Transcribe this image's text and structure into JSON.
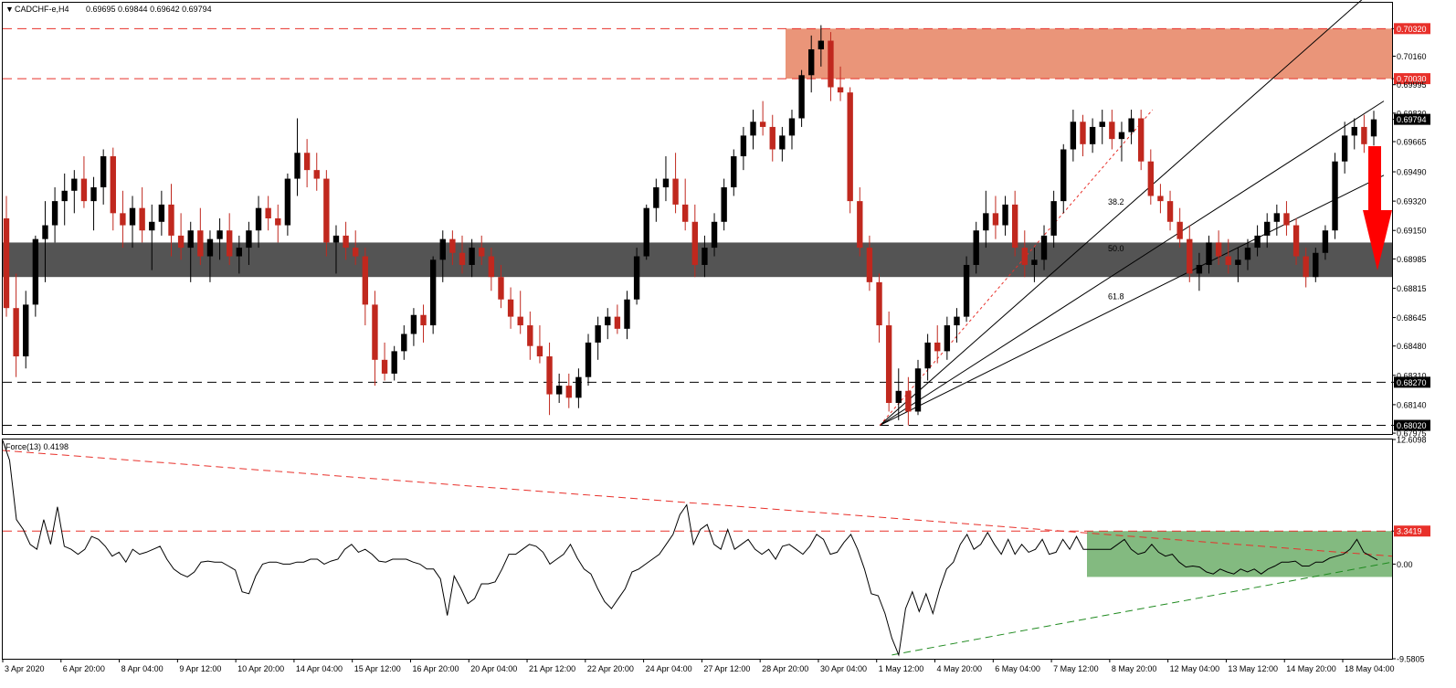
{
  "header": {
    "symbol": "CADCHF-e,H4",
    "ohlc": "0.69695 0.69844 0.69642 0.69794",
    "indicator": "Force(13) 0.4198"
  },
  "colors": {
    "bull_candle": "#000000",
    "bear_candle": "#c0281e",
    "resistance_zone": "#e8896a",
    "support_zone": "#545454",
    "force_zone": "#4e9c4a",
    "red_dash": "#e8302a",
    "green_dash": "#1f8a1f"
  },
  "chart_data": [
    {
      "type": "candlestick",
      "title": "CADCHF-e,H4",
      "ohlc_header": "0.69695 0.69844 0.69642 0.69794",
      "ylim": [
        0.6797,
        0.7047
      ],
      "y_ticks": [
        "0.70320",
        "0.70160",
        "0.70030",
        "0.69995",
        "0.69830",
        "0.69794",
        "0.69665",
        "0.69490",
        "0.69320",
        "0.69150",
        "0.68985",
        "0.68815",
        "0.68645",
        "0.68480",
        "0.68310",
        "0.68270",
        "0.68140",
        "0.68020",
        "0.67975"
      ],
      "highlighted_levels": [
        "0.70320",
        "0.70030",
        "0.69794",
        "0.68270",
        "0.68020"
      ],
      "x_ticks": [
        "3 Apr 2020",
        "6 Apr 20:00",
        "8 Apr 04:00",
        "9 Apr 12:00",
        "10 Apr 20:00",
        "14 Apr 04:00",
        "15 Apr 12:00",
        "16 Apr 20:00",
        "20 Apr 04:00",
        "21 Apr 12:00",
        "22 Apr 20:00",
        "24 Apr 04:00",
        "27 Apr 12:00",
        "28 Apr 20:00",
        "30 Apr 04:00",
        "1 May 12:00",
        "4 May 20:00",
        "6 May 04:00",
        "7 May 12:00",
        "8 May 20:00",
        "12 May 04:00",
        "13 May 12:00",
        "14 May 20:00",
        "18 May 04:00"
      ],
      "candles": [
        [
          0.6922,
          0.6935,
          0.6865,
          0.687
        ],
        [
          0.687,
          0.689,
          0.683,
          0.6842
        ],
        [
          0.6842,
          0.688,
          0.6835,
          0.6872
        ],
        [
          0.6872,
          0.6912,
          0.6865,
          0.691
        ],
        [
          0.691,
          0.6932,
          0.6885,
          0.6918
        ],
        [
          0.6918,
          0.694,
          0.6908,
          0.6932
        ],
        [
          0.6932,
          0.6948,
          0.6918,
          0.6938
        ],
        [
          0.6938,
          0.695,
          0.6925,
          0.6945
        ],
        [
          0.6945,
          0.6958,
          0.6928,
          0.6932
        ],
        [
          0.6932,
          0.6946,
          0.6915,
          0.694
        ],
        [
          0.694,
          0.6962,
          0.693,
          0.6958
        ],
        [
          0.6958,
          0.6963,
          0.6915,
          0.6925
        ],
        [
          0.6925,
          0.6938,
          0.6905,
          0.6918
        ],
        [
          0.6918,
          0.6935,
          0.6905,
          0.6928
        ],
        [
          0.6928,
          0.694,
          0.6908,
          0.6915
        ],
        [
          0.6915,
          0.693,
          0.6892,
          0.692
        ],
        [
          0.692,
          0.6938,
          0.6912,
          0.693
        ],
        [
          0.693,
          0.6942,
          0.69,
          0.6912
        ],
        [
          0.6912,
          0.6925,
          0.6898,
          0.6905
        ],
        [
          0.6905,
          0.692,
          0.6885,
          0.6915
        ],
        [
          0.6915,
          0.6928,
          0.6895,
          0.69
        ],
        [
          0.69,
          0.6915,
          0.6885,
          0.691
        ],
        [
          0.691,
          0.6922,
          0.6898,
          0.6915
        ],
        [
          0.6915,
          0.6925,
          0.6895,
          0.69
        ],
        [
          0.69,
          0.6912,
          0.689,
          0.6905
        ],
        [
          0.6905,
          0.692,
          0.6895,
          0.6915
        ],
        [
          0.6915,
          0.6935,
          0.6905,
          0.6928
        ],
        [
          0.6928,
          0.6935,
          0.6915,
          0.6922
        ],
        [
          0.6922,
          0.693,
          0.6908,
          0.6918
        ],
        [
          0.6918,
          0.6948,
          0.6912,
          0.6945
        ],
        [
          0.6945,
          0.698,
          0.6935,
          0.696
        ],
        [
          0.696,
          0.6968,
          0.694,
          0.695
        ],
        [
          0.695,
          0.696,
          0.6938,
          0.6945
        ],
        [
          0.6945,
          0.695,
          0.69,
          0.6908
        ],
        [
          0.6908,
          0.6918,
          0.689,
          0.6912
        ],
        [
          0.6912,
          0.692,
          0.6898,
          0.6905
        ],
        [
          0.6905,
          0.6915,
          0.6895,
          0.69
        ],
        [
          0.69,
          0.6905,
          0.686,
          0.6872
        ],
        [
          0.6872,
          0.688,
          0.6825,
          0.684
        ],
        [
          0.684,
          0.685,
          0.6828,
          0.6832
        ],
        [
          0.6832,
          0.6848,
          0.6828,
          0.6845
        ],
        [
          0.6845,
          0.686,
          0.684,
          0.6855
        ],
        [
          0.6855,
          0.687,
          0.6848,
          0.6866
        ],
        [
          0.6866,
          0.6872,
          0.685,
          0.686
        ],
        [
          0.686,
          0.69,
          0.6855,
          0.6898
        ],
        [
          0.6898,
          0.6915,
          0.6885,
          0.691
        ],
        [
          0.691,
          0.6915,
          0.6895,
          0.6902
        ],
        [
          0.6902,
          0.6912,
          0.689,
          0.6895
        ],
        [
          0.6895,
          0.691,
          0.6888,
          0.6905
        ],
        [
          0.6905,
          0.6912,
          0.6895,
          0.69
        ],
        [
          0.69,
          0.6905,
          0.688,
          0.6888
        ],
        [
          0.6888,
          0.6895,
          0.687,
          0.6875
        ],
        [
          0.6875,
          0.6882,
          0.6858,
          0.6865
        ],
        [
          0.6865,
          0.688,
          0.6855,
          0.686
        ],
        [
          0.686,
          0.6868,
          0.684,
          0.6848
        ],
        [
          0.6848,
          0.686,
          0.6838,
          0.6842
        ],
        [
          0.6842,
          0.685,
          0.6808,
          0.682
        ],
        [
          0.682,
          0.6832,
          0.6815,
          0.6825
        ],
        [
          0.6825,
          0.6832,
          0.6812,
          0.6818
        ],
        [
          0.6818,
          0.6835,
          0.6812,
          0.683
        ],
        [
          0.683,
          0.6855,
          0.6825,
          0.685
        ],
        [
          0.685,
          0.6865,
          0.684,
          0.686
        ],
        [
          0.686,
          0.687,
          0.6852,
          0.6865
        ],
        [
          0.6865,
          0.6872,
          0.6855,
          0.6858
        ],
        [
          0.6858,
          0.688,
          0.6852,
          0.6875
        ],
        [
          0.6875,
          0.6905,
          0.6872,
          0.69
        ],
        [
          0.69,
          0.693,
          0.6898,
          0.6928
        ],
        [
          0.6928,
          0.6945,
          0.692,
          0.694
        ],
        [
          0.694,
          0.6958,
          0.6932,
          0.6945
        ],
        [
          0.6945,
          0.696,
          0.6925,
          0.693
        ],
        [
          0.693,
          0.6945,
          0.6915,
          0.692
        ],
        [
          0.692,
          0.693,
          0.6888,
          0.6895
        ],
        [
          0.6895,
          0.6912,
          0.6888,
          0.6905
        ],
        [
          0.6905,
          0.6925,
          0.69,
          0.692
        ],
        [
          0.692,
          0.6945,
          0.6915,
          0.694
        ],
        [
          0.694,
          0.6962,
          0.6935,
          0.6958
        ],
        [
          0.6958,
          0.6975,
          0.695,
          0.697
        ],
        [
          0.697,
          0.6985,
          0.6962,
          0.6978
        ],
        [
          0.6978,
          0.699,
          0.697,
          0.6975
        ],
        [
          0.6975,
          0.6982,
          0.6955,
          0.6962
        ],
        [
          0.6962,
          0.6975,
          0.6955,
          0.697
        ],
        [
          0.697,
          0.6985,
          0.6962,
          0.698
        ],
        [
          0.698,
          0.7008,
          0.6975,
          0.7005
        ],
        [
          0.7005,
          0.7028,
          0.6995,
          0.702
        ],
        [
          0.702,
          0.7034,
          0.701,
          0.7025
        ],
        [
          0.7025,
          0.703,
          0.699,
          0.6998
        ],
        [
          0.6998,
          0.701,
          0.699,
          0.6995
        ],
        [
          0.6995,
          0.6998,
          0.6925,
          0.6932
        ],
        [
          0.6932,
          0.694,
          0.69,
          0.6905
        ],
        [
          0.6905,
          0.6912,
          0.688,
          0.6885
        ],
        [
          0.6885,
          0.689,
          0.685,
          0.686
        ],
        [
          0.686,
          0.6868,
          0.681,
          0.6815
        ],
        [
          0.6815,
          0.6835,
          0.6805,
          0.6822
        ],
        [
          0.6822,
          0.683,
          0.6802,
          0.681
        ],
        [
          0.681,
          0.684,
          0.6808,
          0.6835
        ],
        [
          0.6835,
          0.6855,
          0.6828,
          0.685
        ],
        [
          0.685,
          0.686,
          0.6838,
          0.6845
        ],
        [
          0.6845,
          0.6865,
          0.684,
          0.686
        ],
        [
          0.686,
          0.687,
          0.685,
          0.6865
        ],
        [
          0.6865,
          0.69,
          0.6862,
          0.6895
        ],
        [
          0.6895,
          0.692,
          0.689,
          0.6915
        ],
        [
          0.6915,
          0.6938,
          0.6905,
          0.6925
        ],
        [
          0.6925,
          0.6935,
          0.691,
          0.6918
        ],
        [
          0.6918,
          0.6935,
          0.6912,
          0.693
        ],
        [
          0.693,
          0.6938,
          0.69,
          0.6905
        ],
        [
          0.6905,
          0.6915,
          0.6888,
          0.6895
        ],
        [
          0.6895,
          0.6905,
          0.6885,
          0.6898
        ],
        [
          0.6898,
          0.6918,
          0.6892,
          0.6912
        ],
        [
          0.6912,
          0.6938,
          0.6905,
          0.6932
        ],
        [
          0.6932,
          0.6965,
          0.6925,
          0.6962
        ],
        [
          0.6962,
          0.6985,
          0.6955,
          0.6978
        ],
        [
          0.6978,
          0.6982,
          0.6958,
          0.6965
        ],
        [
          0.6965,
          0.698,
          0.696,
          0.6975
        ],
        [
          0.6975,
          0.6985,
          0.6965,
          0.6978
        ],
        [
          0.6978,
          0.6985,
          0.6962,
          0.6968
        ],
        [
          0.6968,
          0.6978,
          0.6955,
          0.6972
        ],
        [
          0.6972,
          0.6985,
          0.6965,
          0.698
        ],
        [
          0.698,
          0.6985,
          0.695,
          0.6955
        ],
        [
          0.6955,
          0.6962,
          0.693,
          0.6935
        ],
        [
          0.6935,
          0.6942,
          0.6925,
          0.6932
        ],
        [
          0.6932,
          0.6938,
          0.6915,
          0.692
        ],
        [
          0.692,
          0.6928,
          0.6905,
          0.691
        ],
        [
          0.691,
          0.6918,
          0.6885,
          0.689
        ],
        [
          0.689,
          0.6902,
          0.688,
          0.6895
        ],
        [
          0.6895,
          0.6912,
          0.689,
          0.6908
        ],
        [
          0.6908,
          0.6915,
          0.6895,
          0.69
        ],
        [
          0.69,
          0.691,
          0.689,
          0.6895
        ],
        [
          0.6895,
          0.6905,
          0.6885,
          0.6898
        ],
        [
          0.6898,
          0.691,
          0.6892,
          0.6905
        ],
        [
          0.6905,
          0.6918,
          0.69,
          0.6912
        ],
        [
          0.6912,
          0.6925,
          0.6905,
          0.692
        ],
        [
          0.692,
          0.693,
          0.6912,
          0.6925
        ],
        [
          0.6925,
          0.6932,
          0.6912,
          0.6918
        ],
        [
          0.6918,
          0.6922,
          0.6895,
          0.69
        ],
        [
          0.69,
          0.6905,
          0.6882,
          0.6888
        ],
        [
          0.6888,
          0.6905,
          0.6885,
          0.6902
        ],
        [
          0.6902,
          0.6918,
          0.6898,
          0.6915
        ],
        [
          0.6915,
          0.696,
          0.691,
          0.6955
        ],
        [
          0.6955,
          0.6978,
          0.6948,
          0.697
        ],
        [
          0.697,
          0.698,
          0.6962,
          0.6975
        ],
        [
          0.6975,
          0.6982,
          0.696,
          0.6965
        ],
        [
          0.69695,
          0.69844,
          0.69642,
          0.69794
        ]
      ],
      "zones": [
        {
          "label": "resistance zone",
          "from": 0.7003,
          "to": 0.7032,
          "color": "#e8896a"
        },
        {
          "label": "support zone",
          "from": 0.6888,
          "to": 0.6908,
          "color": "#545454"
        }
      ],
      "horizontal_levels": [
        {
          "value": 0.7032,
          "color": "#e8302a",
          "style": "dashed"
        },
        {
          "value": 0.7003,
          "color": "#e8302a",
          "style": "dashed"
        },
        {
          "value": 0.6827,
          "color": "#000000",
          "style": "dashed"
        },
        {
          "value": 0.6802,
          "color": "#000000",
          "style": "dashed"
        }
      ],
      "fibonacci_fan_labels": [
        "38.2",
        "50.0",
        "61.8"
      ],
      "annotation": "red down arrow"
    },
    {
      "type": "line",
      "title": "Force(13) 0.4198",
      "ylim": [
        -9.5805,
        12.6098
      ],
      "y_ticks": [
        "12.6098",
        "3.3419",
        "0.00",
        "-9.5805"
      ],
      "highlighted_levels": [
        "3.3419"
      ],
      "values": [
        12.5,
        10.5,
        4.5,
        3.5,
        2.0,
        1.5,
        4.5,
        2.0,
        5.8,
        1.8,
        1.5,
        1.0,
        1.5,
        2.8,
        2.5,
        1.8,
        0.8,
        1.2,
        0.2,
        1.5,
        1.0,
        1.2,
        1.5,
        1.8,
        0.5,
        -0.5,
        -1.0,
        -1.3,
        -0.8,
        0.2,
        0.3,
        0.2,
        0.2,
        -0.2,
        -0.6,
        -2.8,
        -3.0,
        -1.2,
        0.0,
        0.2,
        0.2,
        0.0,
        0.0,
        0.2,
        0.2,
        0.5,
        0.5,
        0.0,
        0.3,
        0.5,
        1.5,
        2.0,
        1.2,
        1.5,
        1.0,
        0.3,
        0.2,
        0.5,
        0.5,
        0.5,
        0.2,
        0.0,
        -0.5,
        -0.5,
        -1.5,
        -5.2,
        -1.2,
        -2.5,
        -4.0,
        -3.5,
        -2.0,
        -2.0,
        -1.8,
        -0.5,
        1.0,
        1.0,
        1.5,
        2.0,
        1.8,
        1.2,
        0.0,
        0.5,
        1.0,
        2.0,
        0.6,
        -0.5,
        -1.0,
        -2.5,
        -3.8,
        -4.5,
        -3.5,
        -2.5,
        -0.8,
        -0.5,
        0.0,
        0.5,
        1.0,
        2.0,
        3.0,
        5.0,
        6.0,
        2.0,
        3.5,
        4.0,
        2.0,
        1.5,
        3.5,
        1.5,
        2.0,
        2.5,
        1.5,
        1.0,
        1.5,
        0.5,
        1.8,
        2.0,
        1.5,
        1.0,
        1.8,
        3.0,
        2.5,
        1.0,
        1.2,
        2.2,
        3.0,
        1.5,
        -0.5,
        -3.0,
        -3.2,
        -5.0,
        -7.5,
        -9.2,
        -4.5,
        -2.8,
        -4.8,
        -3.0,
        -5.0,
        -2.5,
        -0.5,
        0.2,
        2.0,
        3.0,
        1.5,
        2.0,
        3.2,
        2.0,
        1.0,
        2.5,
        1.0,
        2.0,
        1.2,
        1.5,
        2.5,
        1.0,
        1.2,
        2.5,
        1.5,
        2.8,
        1.5,
        1.5,
        1.5,
        1.5,
        1.5,
        2.0,
        2.5,
        1.5,
        1.0,
        1.2,
        2.0,
        1.2,
        0.8,
        1.0,
        0.2,
        -0.3,
        -0.2,
        -0.3,
        -0.8,
        -1.0,
        -0.5,
        -0.8,
        -1.0,
        -0.5,
        -0.8,
        -0.5,
        -1.0,
        -0.5,
        -0.2,
        0.2,
        0.2,
        0.3,
        -0.2,
        -0.2,
        0.2,
        0.2,
        0.6,
        0.8,
        1.0,
        1.5,
        2.5,
        1.2,
        0.8,
        0.4198
      ],
      "trend_lines": [
        {
          "label": "descending resistance",
          "color": "#e8302a",
          "style": "dashed",
          "from": [
            0,
            11.5
          ],
          "to": [
            1,
            0.8
          ]
        },
        {
          "label": "ascending support",
          "color": "#1f8a1f",
          "style": "dashed",
          "from": [
            0.64,
            -9.2
          ],
          "to": [
            1,
            0.2
          ]
        }
      ],
      "horizontal_levels": [
        {
          "value": 3.3419,
          "color": "#e8302a",
          "style": "dashed"
        }
      ],
      "zone": {
        "label": "green box",
        "from": -1.3,
        "to": 3.3419,
        "color": "#4e9c4a"
      }
    }
  ]
}
